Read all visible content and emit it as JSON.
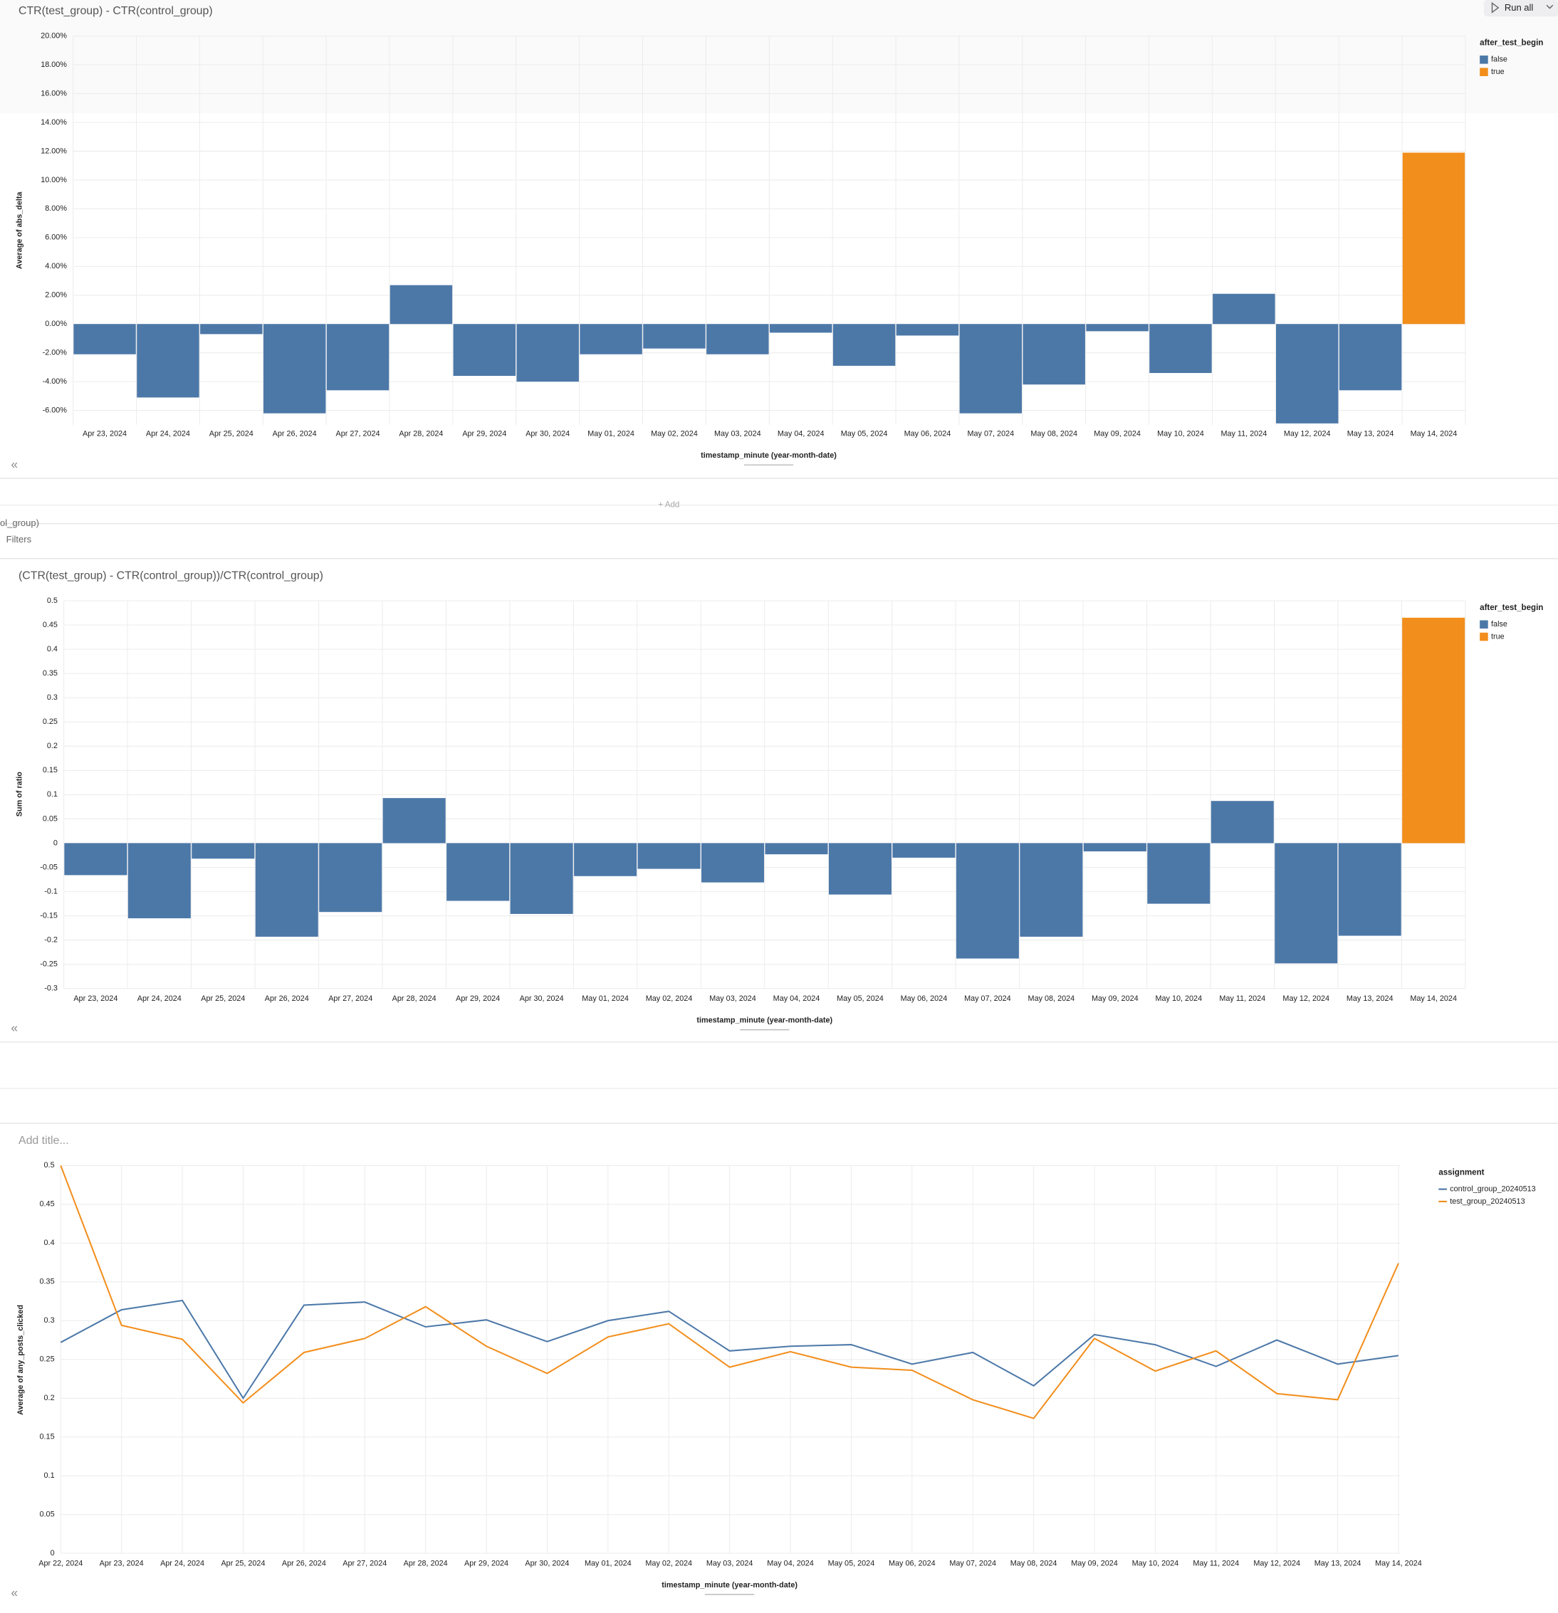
{
  "ui": {
    "run_all": "Run all",
    "add": "+ Add",
    "clipped_label": "ol_group)",
    "filters": "Filters"
  },
  "chart_data": [
    {
      "type": "bar",
      "title": "CTR(test_group) - CTR(control_group)",
      "y_label": "Average of abs_delta",
      "x_label": "timestamp_minute (year-month-date)",
      "legend_title": "after_test_begin",
      "categories": [
        "Apr 23, 2024",
        "Apr 24, 2024",
        "Apr 25, 2024",
        "Apr 26, 2024",
        "Apr 27, 2024",
        "Apr 28, 2024",
        "Apr 29, 2024",
        "Apr 30, 2024",
        "May 01, 2024",
        "May 02, 2024",
        "May 03, 2024",
        "May 04, 2024",
        "May 05, 2024",
        "May 06, 2024",
        "May 07, 2024",
        "May 08, 2024",
        "May 09, 2024",
        "May 10, 2024",
        "May 11, 2024",
        "May 12, 2024",
        "May 13, 2024",
        "May 14, 2024"
      ],
      "series": [
        {
          "name": "false",
          "color": "#4c78a8",
          "values": [
            -2.1,
            -5.1,
            -0.7,
            -6.2,
            -4.6,
            2.7,
            -3.6,
            -4.0,
            -2.1,
            -1.7,
            -2.1,
            -0.6,
            -2.9,
            -0.8,
            -6.2,
            -4.2,
            -0.5,
            -3.4,
            2.1,
            -6.9,
            -4.6,
            null
          ]
        },
        {
          "name": "true",
          "color": "#f28e1c",
          "values": [
            null,
            null,
            null,
            null,
            null,
            null,
            null,
            null,
            null,
            null,
            null,
            null,
            null,
            null,
            null,
            null,
            null,
            null,
            null,
            null,
            null,
            11.9
          ]
        }
      ],
      "ylim": [
        -7,
        20
      ],
      "yticks": [
        {
          "value": 20,
          "label": "20.00%"
        },
        {
          "value": 18,
          "label": "18.00%"
        },
        {
          "value": 16,
          "label": "16.00%"
        },
        {
          "value": 14,
          "label": "14.00%"
        },
        {
          "value": 12,
          "label": "12.00%"
        },
        {
          "value": 10,
          "label": "10.00%"
        },
        {
          "value": 8,
          "label": "8.00%"
        },
        {
          "value": 6,
          "label": "6.00%"
        },
        {
          "value": 4,
          "label": "4.00%"
        },
        {
          "value": 2,
          "label": "2.00%"
        },
        {
          "value": 0,
          "label": "0.00%"
        },
        {
          "value": -2,
          "label": "-2.00%"
        },
        {
          "value": -4,
          "label": "-4.00%"
        },
        {
          "value": -6,
          "label": "-6.00%"
        }
      ],
      "grid": true
    },
    {
      "type": "bar",
      "title": "(CTR(test_group) - CTR(control_group))/CTR(control_group)",
      "y_label": "Sum of ratio",
      "x_label": "timestamp_minute (year-month-date)",
      "legend_title": "after_test_begin",
      "categories": [
        "Apr 23, 2024",
        "Apr 24, 2024",
        "Apr 25, 2024",
        "Apr 26, 2024",
        "Apr 27, 2024",
        "Apr 28, 2024",
        "Apr 29, 2024",
        "Apr 30, 2024",
        "May 01, 2024",
        "May 02, 2024",
        "May 03, 2024",
        "May 04, 2024",
        "May 05, 2024",
        "May 06, 2024",
        "May 07, 2024",
        "May 08, 2024",
        "May 09, 2024",
        "May 10, 2024",
        "May 11, 2024",
        "May 12, 2024",
        "May 13, 2024",
        "May 14, 2024"
      ],
      "series": [
        {
          "name": "false",
          "color": "#4c78a8",
          "values": [
            -0.066,
            -0.155,
            -0.032,
            -0.193,
            -0.142,
            0.093,
            -0.119,
            -0.146,
            -0.068,
            -0.053,
            -0.081,
            -0.023,
            -0.106,
            -0.03,
            -0.238,
            -0.193,
            -0.017,
            -0.125,
            0.087,
            -0.248,
            -0.191,
            null
          ]
        },
        {
          "name": "true",
          "color": "#f28e1c",
          "values": [
            null,
            null,
            null,
            null,
            null,
            null,
            null,
            null,
            null,
            null,
            null,
            null,
            null,
            null,
            null,
            null,
            null,
            null,
            null,
            null,
            null,
            0.465
          ]
        }
      ],
      "ylim": [
        -0.3,
        0.5
      ],
      "yticks": [
        0.5,
        0.45,
        0.4,
        0.35,
        0.3,
        0.25,
        0.2,
        0.15,
        0.1,
        0.05,
        0,
        -0.05,
        -0.1,
        -0.15,
        -0.2,
        -0.25,
        -0.3
      ],
      "grid": true
    },
    {
      "type": "line",
      "title": "Add title...",
      "y_label": "Average of any_posts_clicked",
      "x_label": "timestamp_minute (year-month-date)",
      "legend_title": "assignment",
      "categories": [
        "Apr 22, 2024",
        "Apr 23, 2024",
        "Apr 24, 2024",
        "Apr 25, 2024",
        "Apr 26, 2024",
        "Apr 27, 2024",
        "Apr 28, 2024",
        "Apr 29, 2024",
        "Apr 30, 2024",
        "May 01, 2024",
        "May 02, 2024",
        "May 03, 2024",
        "May 04, 2024",
        "May 05, 2024",
        "May 06, 2024",
        "May 07, 2024",
        "May 08, 2024",
        "May 09, 2024",
        "May 10, 2024",
        "May 11, 2024",
        "May 12, 2024",
        "May 13, 2024",
        "May 14, 2024"
      ],
      "series": [
        {
          "name": "control_group_20240513",
          "color": "#4c78a8",
          "values": [
            0.272,
            0.314,
            0.326,
            0.2,
            0.32,
            0.324,
            0.292,
            0.301,
            0.273,
            0.3,
            0.312,
            0.261,
            0.267,
            0.269,
            0.244,
            0.259,
            0.216,
            0.282,
            0.269,
            0.241,
            0.275,
            0.244,
            0.255
          ]
        },
        {
          "name": "test_group_20240513",
          "color": "#f28e1c",
          "values": [
            0.5,
            0.294,
            0.276,
            0.194,
            0.259,
            0.277,
            0.318,
            0.267,
            0.232,
            0.279,
            0.296,
            0.24,
            0.26,
            0.24,
            0.236,
            0.198,
            0.174,
            0.277,
            0.235,
            0.261,
            0.206,
            0.198,
            0.374
          ]
        }
      ],
      "ylim": [
        0,
        0.5
      ],
      "yticks": [
        0.5,
        0.45,
        0.4,
        0.35,
        0.3,
        0.25,
        0.2,
        0.15,
        0.1,
        0.05,
        0
      ],
      "grid": true
    }
  ]
}
